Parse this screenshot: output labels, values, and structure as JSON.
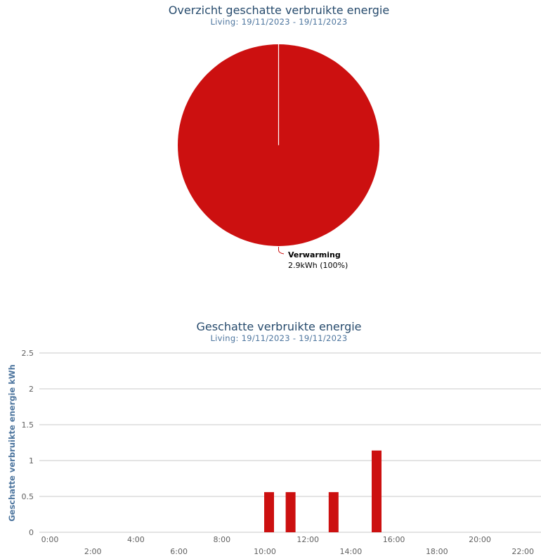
{
  "chart_data": [
    {
      "type": "pie",
      "title": "Overzicht geschatte verbruikte energie",
      "subtitle": "Living: 19/11/2023 - 19/11/2023",
      "slices": [
        {
          "name": "Verwarming",
          "value": 2.9,
          "label": "2.9kWh (100%)",
          "color": "#cc1010"
        }
      ]
    },
    {
      "type": "bar",
      "title": "Geschatte verbruikte energie",
      "subtitle": "Living: 19/11/2023 - 19/11/2023",
      "ylabel": "Geschatte verbruikte energie kWh",
      "xlabel": "",
      "ylim": [
        0,
        2.5
      ],
      "yticks": [
        "0",
        "0.5",
        "1",
        "1.5",
        "2",
        "2.5"
      ],
      "xlim": [
        0,
        23
      ],
      "xticks": [
        "0:00",
        "2:00",
        "4:00",
        "6:00",
        "8:00",
        "10:00",
        "12:00",
        "14:00",
        "16:00",
        "18:00",
        "20:00",
        "22:00"
      ],
      "grid": true,
      "color": "#cc1010",
      "bars": [
        {
          "x": "10:00",
          "y": 0.56
        },
        {
          "x": "11:00",
          "y": 0.56
        },
        {
          "x": "13:00",
          "y": 0.56
        },
        {
          "x": "15:00",
          "y": 1.14
        }
      ]
    }
  ]
}
